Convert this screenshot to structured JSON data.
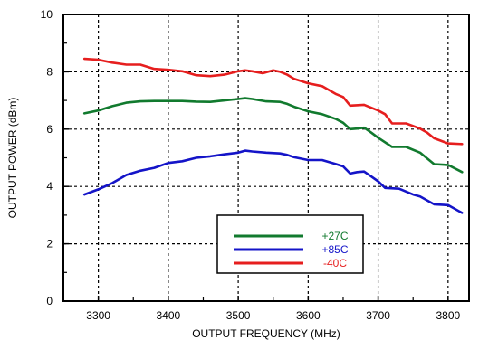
{
  "chart_data": {
    "type": "line",
    "title": "",
    "xlabel": "OUTPUT FREQUENCY (MHz)",
    "ylabel": "OUTPUT POWER (dBm)",
    "xlim": [
      3250,
      3830
    ],
    "ylim": [
      0,
      10
    ],
    "x_ticks": [
      3300,
      3400,
      3500,
      3600,
      3700,
      3800
    ],
    "y_ticks": [
      0,
      2,
      4,
      6,
      8,
      10
    ],
    "x_tick_labels": [
      "3300",
      "3400",
      "3500",
      "3600",
      "3700",
      "3800"
    ],
    "y_tick_labels": [
      "0",
      "2",
      "4",
      "6",
      "8",
      "10"
    ],
    "grid": "dotted",
    "legend_position": "bottom-center",
    "series": [
      {
        "name": "+27C",
        "color": "#117a2e",
        "points": [
          [
            3280,
            6.55
          ],
          [
            3300,
            6.65
          ],
          [
            3320,
            6.8
          ],
          [
            3340,
            6.92
          ],
          [
            3360,
            6.97
          ],
          [
            3380,
            6.98
          ],
          [
            3400,
            6.98
          ],
          [
            3420,
            6.98
          ],
          [
            3440,
            6.96
          ],
          [
            3460,
            6.95
          ],
          [
            3480,
            7.0
          ],
          [
            3500,
            7.05
          ],
          [
            3510,
            7.08
          ],
          [
            3520,
            7.05
          ],
          [
            3540,
            6.97
          ],
          [
            3560,
            6.95
          ],
          [
            3570,
            6.88
          ],
          [
            3580,
            6.78
          ],
          [
            3600,
            6.62
          ],
          [
            3620,
            6.52
          ],
          [
            3640,
            6.35
          ],
          [
            3650,
            6.22
          ],
          [
            3660,
            6.0
          ],
          [
            3670,
            6.02
          ],
          [
            3680,
            6.05
          ],
          [
            3690,
            5.88
          ],
          [
            3700,
            5.7
          ],
          [
            3720,
            5.38
          ],
          [
            3740,
            5.38
          ],
          [
            3760,
            5.18
          ],
          [
            3780,
            4.78
          ],
          [
            3800,
            4.75
          ],
          [
            3820,
            4.5
          ]
        ]
      },
      {
        "name": "+85C",
        "color": "#1414c8",
        "points": [
          [
            3280,
            3.72
          ],
          [
            3300,
            3.9
          ],
          [
            3320,
            4.12
          ],
          [
            3340,
            4.4
          ],
          [
            3360,
            4.55
          ],
          [
            3380,
            4.65
          ],
          [
            3400,
            4.82
          ],
          [
            3420,
            4.88
          ],
          [
            3440,
            5.0
          ],
          [
            3460,
            5.05
          ],
          [
            3480,
            5.12
          ],
          [
            3500,
            5.18
          ],
          [
            3510,
            5.25
          ],
          [
            3520,
            5.22
          ],
          [
            3540,
            5.18
          ],
          [
            3560,
            5.15
          ],
          [
            3570,
            5.1
          ],
          [
            3580,
            5.02
          ],
          [
            3600,
            4.92
          ],
          [
            3620,
            4.92
          ],
          [
            3640,
            4.78
          ],
          [
            3650,
            4.7
          ],
          [
            3660,
            4.45
          ],
          [
            3670,
            4.5
          ],
          [
            3680,
            4.52
          ],
          [
            3690,
            4.35
          ],
          [
            3700,
            4.18
          ],
          [
            3710,
            3.95
          ],
          [
            3730,
            3.92
          ],
          [
            3750,
            3.72
          ],
          [
            3760,
            3.65
          ],
          [
            3780,
            3.38
          ],
          [
            3800,
            3.35
          ],
          [
            3820,
            3.08
          ]
        ]
      },
      {
        "name": "-40C",
        "color": "#e61e1e",
        "points": [
          [
            3280,
            8.45
          ],
          [
            3300,
            8.42
          ],
          [
            3320,
            8.32
          ],
          [
            3340,
            8.25
          ],
          [
            3360,
            8.25
          ],
          [
            3380,
            8.1
          ],
          [
            3400,
            8.07
          ],
          [
            3420,
            8.02
          ],
          [
            3440,
            7.88
          ],
          [
            3460,
            7.85
          ],
          [
            3480,
            7.9
          ],
          [
            3500,
            8.02
          ],
          [
            3510,
            8.05
          ],
          [
            3520,
            8.02
          ],
          [
            3535,
            7.95
          ],
          [
            3550,
            8.05
          ],
          [
            3560,
            8.0
          ],
          [
            3570,
            7.9
          ],
          [
            3580,
            7.75
          ],
          [
            3600,
            7.6
          ],
          [
            3620,
            7.5
          ],
          [
            3640,
            7.22
          ],
          [
            3650,
            7.12
          ],
          [
            3660,
            6.82
          ],
          [
            3680,
            6.85
          ],
          [
            3700,
            6.65
          ],
          [
            3710,
            6.52
          ],
          [
            3720,
            6.2
          ],
          [
            3740,
            6.2
          ],
          [
            3760,
            6.02
          ],
          [
            3770,
            5.88
          ],
          [
            3780,
            5.68
          ],
          [
            3800,
            5.5
          ],
          [
            3820,
            5.48
          ]
        ]
      }
    ]
  }
}
